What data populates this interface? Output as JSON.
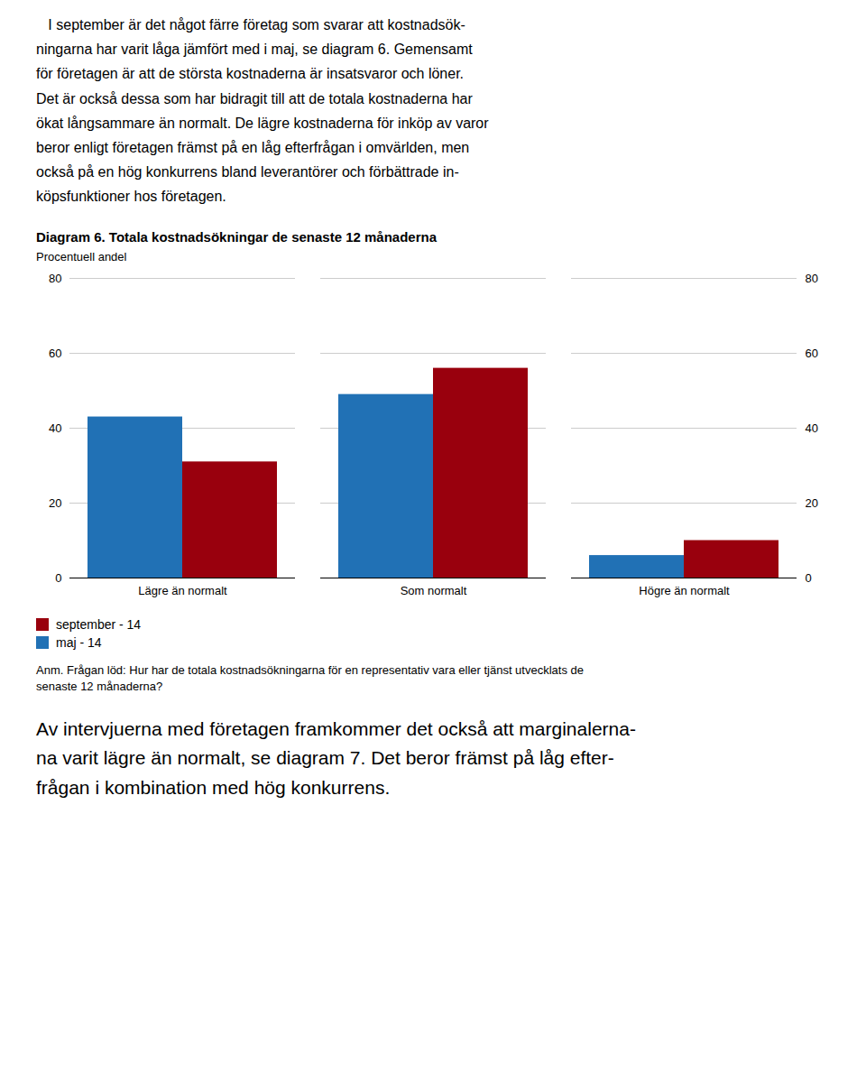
{
  "chart_data": {
    "type": "bar",
    "title": "Diagram 6. Totala kostnadsökningar de senaste 12 månaderna",
    "ylabel": "Procentuell andel",
    "categories": [
      "Lägre än normalt",
      "Som normalt",
      "Högre än normalt"
    ],
    "series": [
      {
        "name": "maj - 14",
        "color": "#2171b5",
        "values": [
          43,
          49,
          6
        ]
      },
      {
        "name": "september - 14",
        "color": "#99000d",
        "values": [
          31,
          56,
          10
        ]
      }
    ],
    "ylim": [
      0,
      80
    ],
    "yticks": [
      0,
      20,
      40,
      60,
      80
    ],
    "grid": true,
    "annotations": [
      "   I september är det något färre företag som svarar att kostnadsök-\nningarna har varit låga jämfört med i maj, se diagram 6. Gemensamt\nför företagen är att de största kostnaderna är insatsvaror och löner.\nDet är också dessa som har bidragit till att de totala kostnaderna har\nökat långsammare än normalt. De lägre kostnaderna för inköp av varor\nberor enligt företagen främst på en låg efterfrågan i omvärlden, men\nockså på en hög konkurrens bland leverantörer och förbättrade in-\nköpsfunktioner hos företagen.",
      "Anm. Frågan löd: Hur har de totala kostnadsökningarna för en representativ vara eller tjänst utvecklats de\nsenaste 12 månaderna?",
      "Av intervjuerna med företagen framkommer det också att marginalerna-\nna varit lägre än normalt, se diagram 7. Det beror främst på låg efter-\nfrågan i kombination med hög konkurrens."
    ]
  }
}
